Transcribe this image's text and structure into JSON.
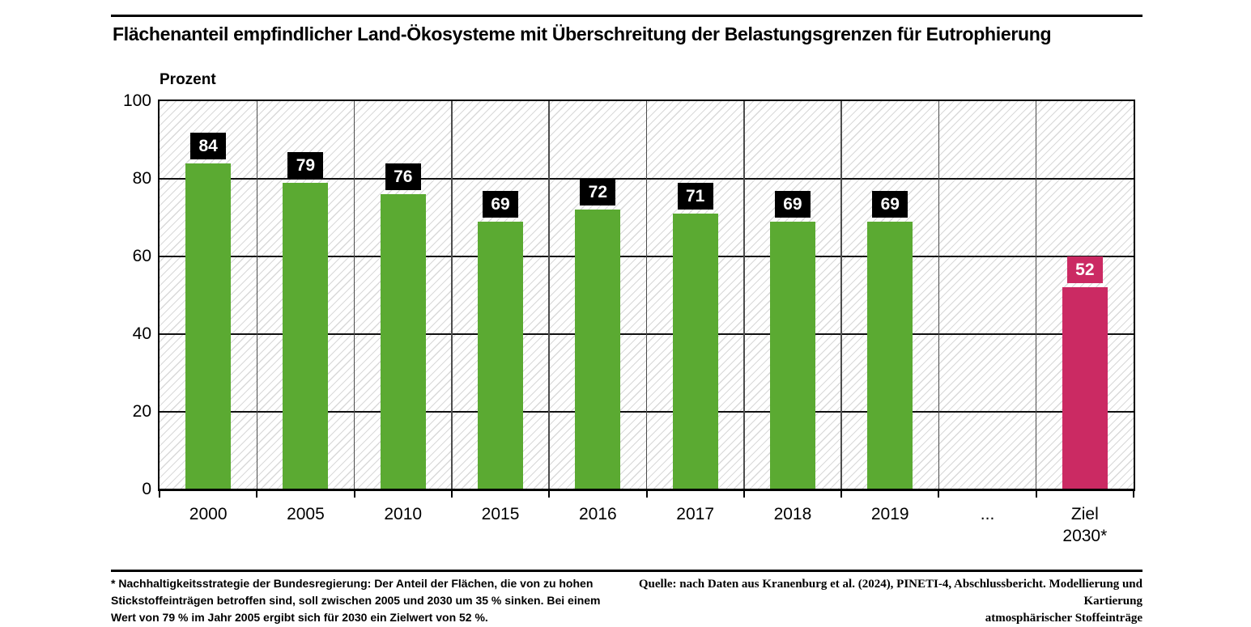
{
  "title": "Flächenanteil empfindlicher Land-Ökosysteme mit Überschreitung der Belastungsgrenzen für Eutrophierung",
  "chart_data": {
    "type": "bar",
    "title": "Flächenanteil empfindlicher Land-Ökosysteme mit Überschreitung der Belastungsgrenzen für Eutrophierung",
    "ylabel": "Prozent",
    "xlabel": "",
    "ylim": [
      0,
      100
    ],
    "yticks": [
      0,
      20,
      40,
      60,
      80,
      100
    ],
    "grid": "horizontal gridlines every 20, vertical category separators, diagonal hatch background",
    "legend": "none",
    "categories": [
      {
        "label": "2000"
      },
      {
        "label": "2005"
      },
      {
        "label": "2010"
      },
      {
        "label": "2015"
      },
      {
        "label": "2016"
      },
      {
        "label": "2017"
      },
      {
        "label": "2018"
      },
      {
        "label": "2019"
      },
      {
        "label": "..."
      },
      {
        "label": "Ziel 2030*",
        "lines": [
          "Ziel",
          "2030*"
        ]
      }
    ],
    "values": [
      84,
      79,
      76,
      69,
      72,
      71,
      69,
      69,
      null,
      52
    ],
    "target_index": 9,
    "colors": {
      "bar": "#5baa32",
      "target_bar": "#cb2a63",
      "value_label_bg": "#000000",
      "target_value_label_bg": "#cb2a63",
      "value_label_text": "#ffffff",
      "hatch_line": "#d9d9d9",
      "gridline": "#111111",
      "separator": "#4d4d4d"
    }
  },
  "footnote": {
    "lines": [
      "* Nachhaltigkeitsstrategie der Bundesregierung: Der Anteil der Flächen, die von zu hohen",
      "Stickstoffeinträgen betroffen sind, soll zwischen 2005 und 2030 um 35 % sinken. Bei einem",
      "Wert von 79 % im Jahr 2005 ergibt sich für 2030 ein Zielwert von 52 %."
    ]
  },
  "source": {
    "lines": [
      "Quelle: nach Daten aus Kranenburg et al. (2024), PINETI-4, Abschlussbericht. Modellierung und Kartierung",
      "atmosphärischer Stoffeinträge"
    ]
  }
}
